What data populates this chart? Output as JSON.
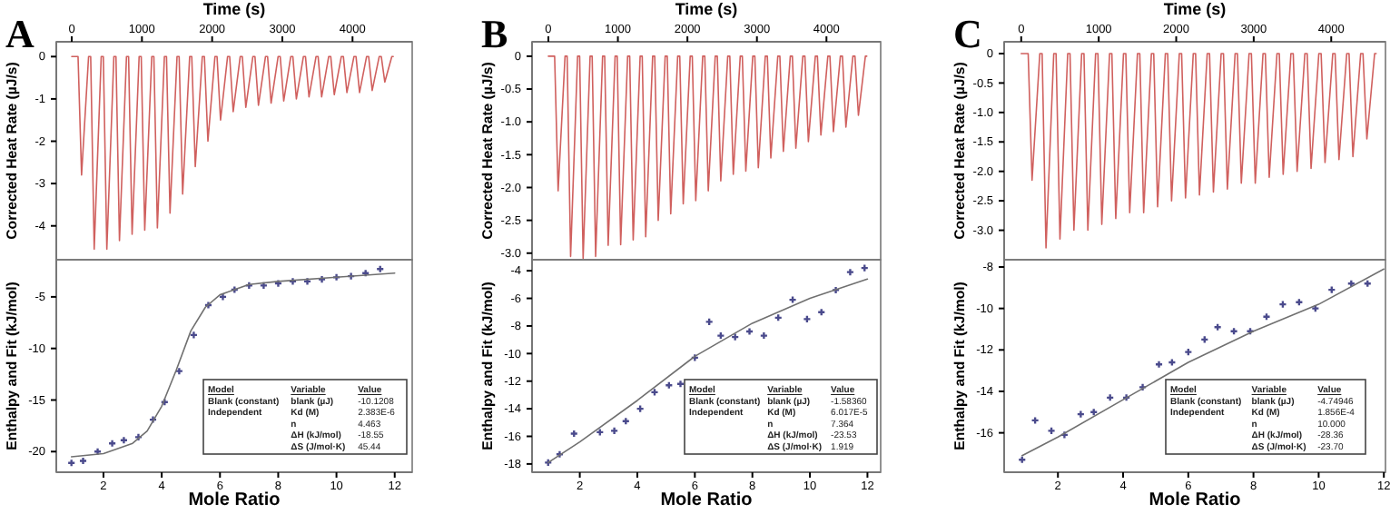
{
  "chart_data": [
    {
      "type": "line",
      "title": "A",
      "xlabel": "Time (s)",
      "ylabel": "Corrected Heat Rate (µJ/s)",
      "xlim": [
        -220,
        4850
      ],
      "xticks": [
        0,
        1000,
        2000,
        3000,
        4000
      ],
      "ylim": [
        -4.8,
        0.35
      ],
      "yticks": [
        0,
        -1,
        -2,
        -3,
        -4
      ],
      "color": "#d0605e",
      "x": [
        0,
        90,
        140,
        240,
        270,
        320,
        420,
        450,
        500,
        600,
        630,
        680,
        780,
        810,
        860,
        960,
        990,
        1040,
        1140,
        1170,
        1220,
        1320,
        1350,
        1400,
        1500,
        1530,
        1580,
        1680,
        1710,
        1760,
        1860,
        1890,
        1940,
        2040,
        2070,
        2120,
        2220,
        2250,
        2300,
        2400,
        2430,
        2480,
        2580,
        2610,
        2660,
        2760,
        2790,
        2840,
        2940,
        2970,
        3020,
        3120,
        3150,
        3200,
        3300,
        3330,
        3380,
        3480,
        3510,
        3560,
        3660,
        3690,
        3740,
        3840,
        3870,
        3920,
        4020,
        4050,
        4100,
        4200,
        4230,
        4280,
        4380,
        4410,
        4460,
        4560,
        4580
      ],
      "values": [
        0,
        0,
        -2.8,
        0,
        0,
        -4.55,
        0,
        0,
        -4.55,
        0,
        0,
        -4.35,
        0,
        0,
        -4.2,
        0,
        0,
        -4.1,
        0,
        0,
        -4.05,
        0,
        0,
        -3.7,
        0,
        0,
        -3.25,
        0,
        0,
        -2.6,
        0,
        0,
        -2.0,
        0,
        0,
        -1.5,
        0,
        0,
        -1.3,
        0,
        0,
        -1.2,
        0,
        0,
        -1.15,
        0,
        0,
        -1.1,
        0,
        0,
        -1.05,
        0,
        0,
        -1.0,
        0,
        0,
        -0.95,
        0,
        0,
        -0.95,
        0,
        0,
        -0.9,
        0,
        0,
        -0.85,
        0,
        0,
        -0.85,
        0,
        0,
        -0.8,
        0,
        0,
        -0.6,
        0,
        0
      ]
    },
    {
      "type": "scatter",
      "xlabel": "Mole Ratio",
      "ylabel": "Enthalpy and Fit (kJ/mol)",
      "xlim": [
        0.38,
        12.6
      ],
      "xticks": [
        2,
        4,
        6,
        8,
        10,
        12
      ],
      "ylim": [
        -22,
        -1.4
      ],
      "yticks": [
        -5,
        -10,
        -15,
        -20
      ],
      "series": [
        {
          "marker": "cross",
          "color": "#4a4a8c",
          "x": [
            0.9,
            1.3,
            1.8,
            2.3,
            2.7,
            3.2,
            3.7,
            4.1,
            4.6,
            5.1,
            5.6,
            6.1,
            6.5,
            7.0,
            7.5,
            8.0,
            8.5,
            9.0,
            9.5,
            10.0,
            10.5,
            11.0,
            11.5
          ],
          "values": [
            -21.1,
            -20.9,
            -20.0,
            -19.2,
            -18.9,
            -18.6,
            -16.9,
            -15.2,
            -12.2,
            -8.7,
            -5.8,
            -5.0,
            -4.3,
            -3.9,
            -3.9,
            -3.7,
            -3.5,
            -3.5,
            -3.3,
            -3.1,
            -3.0,
            -2.7,
            -2.3
          ]
        },
        {
          "type": "line",
          "color": "#707070",
          "x": [
            0.9,
            2,
            3,
            3.5,
            4,
            4.5,
            5,
            5.5,
            6,
            7,
            8,
            10,
            12
          ],
          "values": [
            -20.5,
            -20.2,
            -19.2,
            -18,
            -15.6,
            -12.1,
            -8.3,
            -6.0,
            -4.8,
            -3.8,
            -3.5,
            -3.1,
            -2.7
          ]
        }
      ],
      "annotations": [
        "Model",
        "Variable",
        "Value",
        "Blank (constant)",
        "blank (µJ)",
        "-10.1208",
        "Independent",
        "Kd (M)",
        "2.383E-6",
        "n",
        "4.463",
        "ΔH (kJ/mol)",
        "-18.55",
        "ΔS (J/mol·K)",
        "45.44"
      ]
    },
    {
      "type": "line",
      "title": "B",
      "xlabel": "Time (s)",
      "ylabel": "Corrected Heat Rate (µJ/s)",
      "xlim": [
        -235,
        4780
      ],
      "xticks": [
        0,
        1000,
        2000,
        3000,
        4000
      ],
      "ylim": [
        -3.1,
        0.22
      ],
      "yticks": [
        0,
        {
          "value": -0.5,
          "label": "-0.5"
        },
        {
          "value": -1,
          "label": "-1.0"
        },
        {
          "value": -1.5,
          "label": "-1.5"
        },
        {
          "value": -2,
          "label": "-2.0"
        },
        {
          "value": -2.5,
          "label": "-2.5"
        },
        {
          "value": -3,
          "label": "-3.0"
        }
      ],
      "color": "#d0605e",
      "x": [
        0,
        90,
        140,
        240,
        270,
        320,
        420,
        450,
        500,
        600,
        630,
        680,
        780,
        810,
        860,
        960,
        990,
        1040,
        1140,
        1170,
        1220,
        1320,
        1350,
        1400,
        1500,
        1530,
        1580,
        1680,
        1710,
        1760,
        1860,
        1890,
        1940,
        2040,
        2070,
        2120,
        2220,
        2250,
        2300,
        2400,
        2430,
        2480,
        2580,
        2610,
        2660,
        2760,
        2790,
        2840,
        2940,
        2970,
        3020,
        3120,
        3150,
        3200,
        3300,
        3330,
        3380,
        3480,
        3510,
        3560,
        3660,
        3690,
        3740,
        3840,
        3870,
        3920,
        4020,
        4050,
        4100,
        4200,
        4230,
        4280,
        4380,
        4410,
        4460,
        4560,
        4580
      ],
      "values": [
        0,
        0,
        -2.05,
        0,
        0,
        -3.05,
        0,
        0,
        -3.08,
        0,
        0,
        -3.05,
        0,
        0,
        -2.88,
        0,
        0,
        -2.87,
        0,
        0,
        -2.8,
        0,
        0,
        -2.75,
        0,
        0,
        -2.5,
        0,
        0,
        -2.4,
        0,
        0,
        -2.25,
        0,
        0,
        -2.2,
        0,
        0,
        -2.05,
        0,
        0,
        -1.9,
        0,
        0,
        -1.8,
        0,
        0,
        -1.75,
        0,
        0,
        -1.7,
        0,
        0,
        -1.55,
        0,
        0,
        -1.45,
        0,
        0,
        -1.4,
        0,
        0,
        -1.3,
        0,
        0,
        -1.2,
        0,
        0,
        -1.15,
        0,
        0,
        -1.08,
        0,
        0,
        -0.9,
        0,
        0
      ]
    },
    {
      "type": "scatter",
      "xlabel": "Mole Ratio",
      "ylabel": "Enthalpy and Fit (kJ/mol)",
      "xlim": [
        0.34,
        12.46
      ],
      "xticks": [
        2,
        4,
        6,
        8,
        10,
        12
      ],
      "ylim": [
        -18.6,
        -3.2
      ],
      "yticks": [
        -4,
        -6,
        -8,
        -10,
        -12,
        -14,
        -16,
        -18
      ],
      "series": [
        {
          "marker": "cross",
          "color": "#4a4a8c",
          "x": [
            0.9,
            1.3,
            1.8,
            2.7,
            3.2,
            3.6,
            4.1,
            4.6,
            5.1,
            5.5,
            6.0,
            6.5,
            6.9,
            7.4,
            7.9,
            8.4,
            8.9,
            9.4,
            9.9,
            10.4,
            10.9,
            11.4,
            11.9
          ],
          "values": [
            -17.9,
            -17.3,
            -15.8,
            -15.7,
            -15.6,
            -14.9,
            -14.0,
            -12.8,
            -12.3,
            -12.2,
            -10.3,
            -7.7,
            -8.7,
            -8.8,
            -8.4,
            -8.7,
            -7.4,
            -6.1,
            -7.5,
            -7.0,
            -5.4,
            -4.1,
            -3.8
          ]
        },
        {
          "type": "line",
          "color": "#707070",
          "x": [
            0.9,
            2,
            4,
            6,
            8,
            10,
            12
          ],
          "values": [
            -17.9,
            -16.4,
            -13.4,
            -10.2,
            -7.8,
            -6.0,
            -4.6
          ]
        }
      ],
      "annotations": [
        "Model",
        "Variable",
        "Value",
        "Blank (constant)",
        "blank (µJ)",
        "-1.58360",
        "Independent",
        "Kd (M)",
        "6.017E-5",
        "n",
        "7.364",
        "ΔH (kJ/mol)",
        "-23.53",
        "ΔS (J/mol·K)",
        "1.919"
      ]
    },
    {
      "type": "line",
      "title": "C",
      "xlabel": "Time (s)",
      "ylabel": "Corrected Heat Rate (µJ/s)",
      "xlim": [
        -220,
        4700
      ],
      "xticks": [
        0,
        1000,
        2000,
        3000,
        4000
      ],
      "ylim": [
        -3.5,
        0.2
      ],
      "yticks": [
        0,
        {
          "value": -0.5,
          "label": "-0.5"
        },
        {
          "value": -1,
          "label": "-1.0"
        },
        {
          "value": -1.5,
          "label": "-1.5"
        },
        {
          "value": -2,
          "label": "-2.0"
        },
        {
          "value": -2.5,
          "label": "-2.5"
        },
        {
          "value": -3,
          "label": "-3.0"
        }
      ],
      "color": "#d0605e",
      "x": [
        0,
        90,
        140,
        240,
        270,
        320,
        420,
        450,
        500,
        600,
        630,
        680,
        780,
        810,
        860,
        960,
        990,
        1040,
        1140,
        1170,
        1220,
        1320,
        1350,
        1400,
        1500,
        1530,
        1580,
        1680,
        1710,
        1760,
        1860,
        1890,
        1940,
        2040,
        2070,
        2120,
        2220,
        2250,
        2300,
        2400,
        2430,
        2480,
        2580,
        2610,
        2660,
        2760,
        2790,
        2840,
        2940,
        2970,
        3020,
        3120,
        3150,
        3200,
        3300,
        3330,
        3380,
        3480,
        3510,
        3560,
        3660,
        3690,
        3740,
        3840,
        3870,
        3920,
        4020,
        4050,
        4100,
        4200,
        4230,
        4280,
        4380,
        4410,
        4460,
        4560,
        4580
      ],
      "values": [
        0,
        0,
        -2.15,
        0,
        0,
        -3.3,
        0,
        0,
        -3.15,
        0,
        0,
        -3.0,
        0,
        0,
        -3.0,
        0,
        0,
        -2.9,
        0,
        0,
        -2.8,
        0,
        0,
        -2.7,
        0,
        0,
        -2.7,
        0,
        0,
        -2.6,
        0,
        0,
        -2.5,
        0,
        0,
        -2.45,
        0,
        0,
        -2.4,
        0,
        0,
        -2.35,
        0,
        0,
        -2.3,
        0,
        0,
        -2.2,
        0,
        0,
        -2.2,
        0,
        0,
        -2.1,
        0,
        0,
        -2.05,
        0,
        0,
        -2.0,
        0,
        0,
        -1.95,
        0,
        0,
        -1.85,
        0,
        0,
        -1.8,
        0,
        0,
        -1.75,
        0,
        0,
        -1.45,
        0,
        0
      ]
    },
    {
      "type": "scatter",
      "xlabel": "Mole Ratio",
      "ylabel": "Enthalpy and Fit (kJ/mol)",
      "xlim": [
        0.35,
        12.05
      ],
      "xticks": [
        2,
        4,
        6,
        8,
        10,
        12
      ],
      "ylim": [
        -17.9,
        -7.65
      ],
      "yticks": [
        -8,
        -10,
        -12,
        -14,
        -16
      ],
      "series": [
        {
          "marker": "cross",
          "color": "#4a4a8c",
          "x": [
            0.9,
            1.3,
            1.8,
            2.2,
            2.7,
            3.1,
            3.6,
            4.1,
            4.6,
            5.1,
            5.5,
            6.0,
            6.5,
            6.9,
            7.4,
            7.9,
            8.4,
            8.9,
            9.4,
            9.9,
            10.4,
            11.0,
            11.5
          ],
          "values": [
            -17.3,
            -15.4,
            -15.9,
            -16.1,
            -15.1,
            -15.0,
            -14.3,
            -14.3,
            -13.8,
            -12.7,
            -12.6,
            -12.1,
            -11.5,
            -10.9,
            -11.1,
            -11.1,
            -10.4,
            -9.8,
            -9.7,
            -10.0,
            -9.1,
            -8.8,
            -8.8
          ]
        },
        {
          "type": "line",
          "color": "#707070",
          "x": [
            0.9,
            2,
            4,
            6,
            8,
            10,
            12
          ],
          "values": [
            -17.1,
            -16.2,
            -14.4,
            -12.6,
            -11.1,
            -9.8,
            -8.1
          ]
        }
      ],
      "annotations": [
        "Model",
        "Variable",
        "Value",
        "Blank (constant)",
        "blank (µJ)",
        "-4.74946",
        "Independent",
        "Kd (M)",
        "1.856E-4",
        "n",
        "10.000",
        "ΔH (kJ/mol)",
        "-28.36",
        "ΔS (J/mol·K)",
        "-23.70"
      ]
    }
  ]
}
